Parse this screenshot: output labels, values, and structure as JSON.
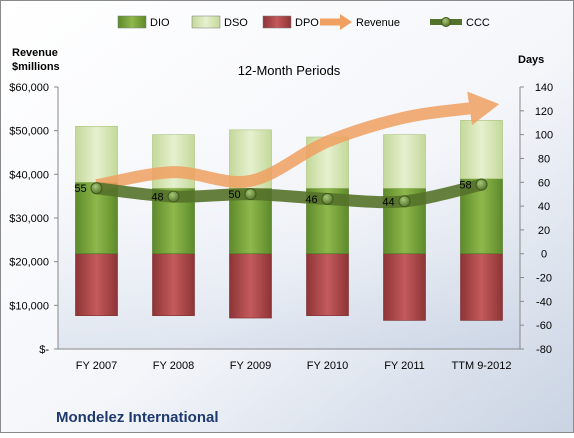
{
  "chart_data": {
    "type": "bar",
    "title": "12-Month Periods",
    "company": "Mondelez International",
    "left_axis_title": [
      "Revenue",
      "$millions"
    ],
    "right_axis_title": "Days",
    "categories": [
      "FY 2007",
      "FY 2008",
      "FY 2009",
      "FY 2010",
      "FY 2011",
      "TTM 9-2012"
    ],
    "left_ticks": [
      "$-",
      "$10,000",
      "$20,000",
      "$30,000",
      "$40,000",
      "$50,000",
      "$60,000"
    ],
    "left_ylim": [
      0,
      60000
    ],
    "right_ylim": [
      -80,
      140
    ],
    "right_ticks": [
      "-80",
      "-60",
      "-40",
      "-20",
      "0",
      "20",
      "40",
      "60",
      "80",
      "100",
      "120",
      "140"
    ],
    "legend": [
      {
        "key": "DIO",
        "label": "DIO",
        "kind": "bar",
        "color": "#7aa33d"
      },
      {
        "key": "DSO",
        "label": "DSO",
        "kind": "bar",
        "color": "#d7e6b4"
      },
      {
        "key": "DPO",
        "label": "DPO",
        "kind": "bar",
        "color": "#b04a4c"
      },
      {
        "key": "Revenue",
        "label": "Revenue",
        "kind": "arrow",
        "color": "#f0a060"
      },
      {
        "key": "CCC",
        "label": "CCC",
        "kind": "line-marker",
        "color": "#55722a"
      }
    ],
    "series": [
      {
        "name": "DPO",
        "axis": "right",
        "values": [
          -52,
          -52,
          -54,
          -52,
          -56,
          -56
        ]
      },
      {
        "name": "DIO",
        "axis": "right",
        "values": [
          60,
          55,
          55,
          55,
          55,
          63
        ]
      },
      {
        "name": "DSO",
        "axis": "right",
        "values": [
          47,
          45,
          49,
          43,
          45,
          49
        ]
      },
      {
        "name": "Revenue",
        "axis": "left",
        "values": [
          37500,
          40500,
          38500,
          47500,
          53000,
          55500
        ]
      },
      {
        "name": "CCC",
        "axis": "right",
        "values": [
          55,
          48,
          50,
          46,
          44,
          58
        ],
        "labels": [
          "55",
          "48",
          "50",
          "46",
          "44",
          "58"
        ]
      }
    ],
    "grid": false,
    "legend_position": "top"
  }
}
